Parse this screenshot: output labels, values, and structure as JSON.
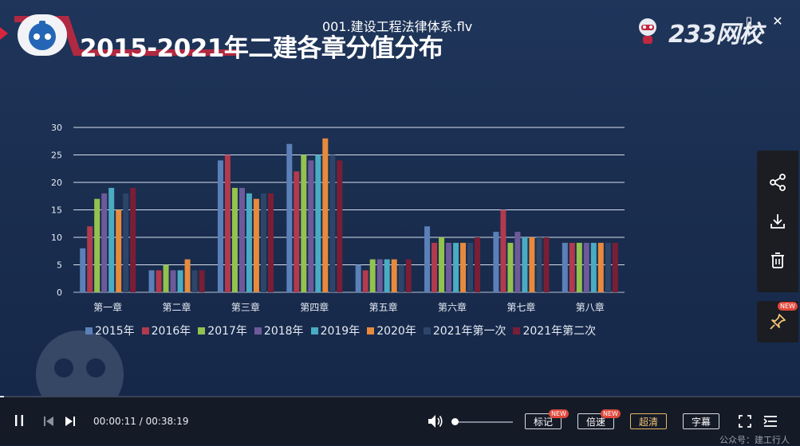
{
  "player": {
    "file_name": "001.建设工程法律体系.flv",
    "brand": "233网校",
    "current_time": "00:00:11",
    "total_time": "00:38:19",
    "time_separator": " / ",
    "progress_fraction": 0.0048,
    "volume_fraction": 0.05,
    "buttons": {
      "mark": "标记",
      "speed": "倍速",
      "quality": "超清",
      "subtitle": "字幕"
    },
    "new_badge": "NEW",
    "watermark": "公众号：建工行人"
  },
  "slide": {
    "title": "2015-2021年二建各章分值分布"
  },
  "colors": {
    "accent_red": "#e0483b",
    "quality_gold": "#f1c476"
  },
  "chart_data": {
    "type": "bar",
    "categories": [
      "第一章",
      "第二章",
      "第三章",
      "第四章",
      "第五章",
      "第六章",
      "第七章",
      "第八章"
    ],
    "ylim": [
      0,
      30
    ],
    "yticks": [
      0,
      5,
      10,
      15,
      20,
      25,
      30
    ],
    "grid": true,
    "legend_position": "bottom",
    "series": [
      {
        "name": "2015年",
        "color": "#5b80b8",
        "values": [
          8,
          4,
          24,
          27,
          5,
          12,
          11,
          9
        ]
      },
      {
        "name": "2016年",
        "color": "#b23a4e",
        "values": [
          12,
          4,
          25,
          22,
          4,
          9,
          15,
          9
        ]
      },
      {
        "name": "2017年",
        "color": "#93c24f",
        "values": [
          17,
          5,
          19,
          25,
          6,
          10,
          9,
          9
        ]
      },
      {
        "name": "2018年",
        "color": "#6d5a9a",
        "values": [
          18,
          4,
          19,
          24,
          6,
          9,
          11,
          9
        ]
      },
      {
        "name": "2019年",
        "color": "#4aabc2",
        "values": [
          19,
          4,
          18,
          25,
          6,
          9,
          10,
          9
        ]
      },
      {
        "name": "2020年",
        "color": "#e88a3c",
        "values": [
          15,
          6,
          17,
          28,
          6,
          9,
          10,
          9
        ]
      },
      {
        "name": "2021年第一次",
        "color": "#2d4568",
        "values": [
          18,
          4,
          18,
          25,
          5,
          9,
          10,
          9
        ]
      },
      {
        "name": "2021年第二次",
        "color": "#7a1e36",
        "values": [
          19,
          4,
          18,
          24,
          6,
          10,
          10,
          9
        ]
      }
    ]
  }
}
